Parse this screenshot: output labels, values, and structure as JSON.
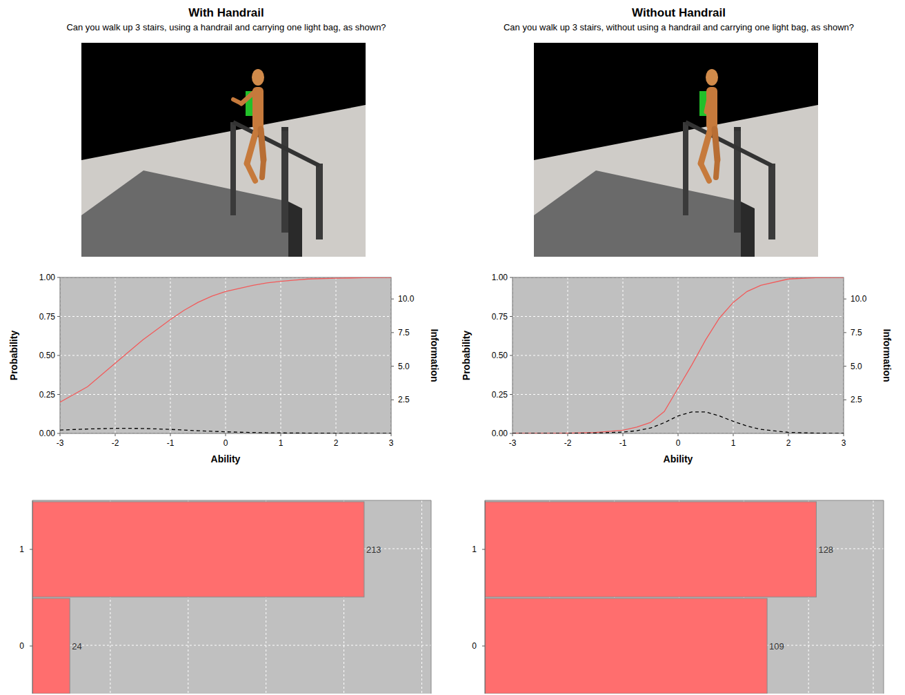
{
  "chart_data": [
    {
      "type": "line",
      "title": "With Handrail",
      "subtitle": "Can you walk up 3 stairs, using a handrail and carrying one light bag, as shown?",
      "x_label": "Ability",
      "y_label": "Probability",
      "y2_label": "Information",
      "xlim": [
        -3,
        3
      ],
      "xticks": [
        -3,
        -2,
        -1,
        0,
        1,
        2,
        3
      ],
      "ylim": [
        0,
        1
      ],
      "yticks": [
        {
          "value": 0,
          "label": "0.00"
        },
        {
          "value": 0.25,
          "label": "0.25"
        },
        {
          "value": 0.5,
          "label": "0.50"
        },
        {
          "value": 0.75,
          "label": "0.75"
        },
        {
          "value": 1,
          "label": "1.00"
        }
      ],
      "y2lim": [
        0,
        11.6
      ],
      "y2ticks": [
        {
          "value": 2.5,
          "label": "2.5"
        },
        {
          "value": 5,
          "label": "5.0"
        },
        {
          "value": 7.5,
          "label": "7.5"
        },
        {
          "value": 10,
          "label": "10.0"
        }
      ],
      "grid": true,
      "x": [
        -3,
        -2.5,
        -2,
        -1.5,
        -1,
        -0.75,
        -0.5,
        -0.25,
        0,
        0.25,
        0.5,
        0.75,
        1,
        1.25,
        1.5,
        2,
        2.5,
        3
      ],
      "series": [
        {
          "color": "#f25a5a",
          "line_style": "solid",
          "values": [
            0.2,
            0.3,
            0.45,
            0.6,
            0.73,
            0.79,
            0.84,
            0.88,
            0.91,
            0.93,
            0.95,
            0.965,
            0.975,
            0.983,
            0.99,
            0.995,
            0.998,
            1.0
          ]
        },
        {
          "color": "#000000",
          "line_style": "dashed",
          "axis": "y2",
          "values": [
            0.25,
            0.33,
            0.38,
            0.37,
            0.3,
            0.25,
            0.2,
            0.16,
            0.12,
            0.09,
            0.07,
            0.05,
            0.04,
            0.03,
            0.02,
            0.01,
            0.005,
            0.0
          ]
        }
      ]
    },
    {
      "type": "line",
      "title": "Without Handrail",
      "subtitle": "Can you walk up 3 stairs, without using a handrail and carrying one light bag, as shown?",
      "x_label": "Ability",
      "y_label": "Probability",
      "y2_label": "Information",
      "xlim": [
        -3,
        3
      ],
      "xticks": [
        -3,
        -2,
        -1,
        0,
        1,
        2,
        3
      ],
      "ylim": [
        0,
        1
      ],
      "yticks": [
        {
          "value": 0,
          "label": "0.00"
        },
        {
          "value": 0.25,
          "label": "0.25"
        },
        {
          "value": 0.5,
          "label": "0.50"
        },
        {
          "value": 0.75,
          "label": "0.75"
        },
        {
          "value": 1,
          "label": "1.00"
        }
      ],
      "y2lim": [
        0,
        11.6
      ],
      "y2ticks": [
        {
          "value": 2.5,
          "label": "2.5"
        },
        {
          "value": 5,
          "label": "5.0"
        },
        {
          "value": 7.5,
          "label": "7.5"
        },
        {
          "value": 10,
          "label": "10.0"
        }
      ],
      "grid": true,
      "x": [
        -3,
        -2.5,
        -2,
        -1.5,
        -1,
        -0.75,
        -0.5,
        -0.25,
        0,
        0.25,
        0.5,
        0.75,
        1,
        1.25,
        1.5,
        2,
        2.5,
        3
      ],
      "series": [
        {
          "color": "#f25a5a",
          "line_style": "solid",
          "values": [
            0.0,
            0.0,
            0.002,
            0.006,
            0.02,
            0.04,
            0.07,
            0.14,
            0.29,
            0.44,
            0.6,
            0.74,
            0.84,
            0.91,
            0.95,
            0.99,
            0.998,
            1.0
          ]
        },
        {
          "color": "#000000",
          "line_style": "dashed",
          "axis": "y2",
          "values": [
            0.0,
            0.0,
            0.01,
            0.03,
            0.1,
            0.2,
            0.4,
            0.8,
            1.3,
            1.6,
            1.6,
            1.3,
            0.9,
            0.55,
            0.3,
            0.08,
            0.02,
            0.0
          ]
        }
      ]
    },
    {
      "type": "bar",
      "orientation": "horizontal",
      "categories": [
        "0",
        "1"
      ],
      "values": [
        24,
        213
      ],
      "color": "#ff6e6e",
      "xlim": [
        0,
        256
      ],
      "xticks": [
        50,
        100,
        150,
        200,
        250
      ],
      "grid": true,
      "data_labels": true,
      "tick_labels": "y"
    },
    {
      "type": "bar",
      "orientation": "horizontal",
      "categories": [
        "0",
        "1"
      ],
      "values": [
        109,
        128
      ],
      "color": "#ff6e6e",
      "xlim": [
        0,
        154
      ],
      "xticks": [
        25,
        50,
        75,
        100,
        125,
        150
      ],
      "grid": true,
      "data_labels": true,
      "tick_labels": "y"
    }
  ]
}
